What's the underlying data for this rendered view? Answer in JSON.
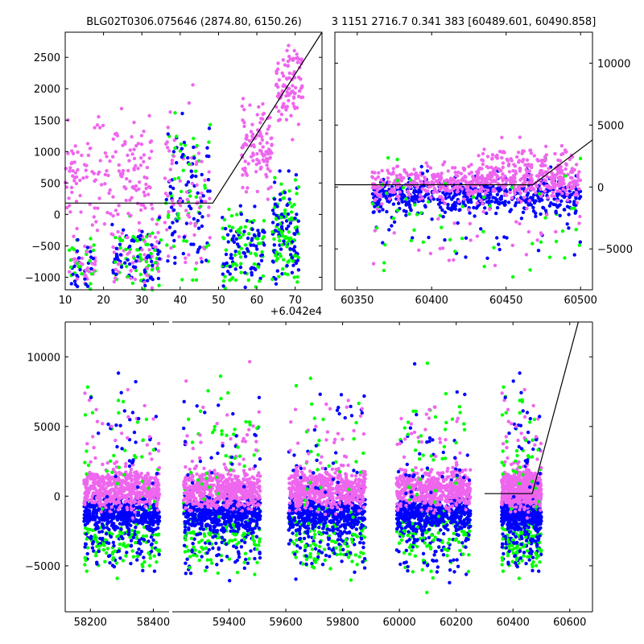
{
  "figure": {
    "title_left": "BLG02T0306.075646 (2874.80, 6150.26)",
    "title_right": "3 1151 2716.7 0.341 383 [60489.601, 60490.858]"
  },
  "colors": {
    "blue": "#0000ff",
    "green": "#00ff00",
    "magenta": "#ee66ee",
    "model_line": "#000000"
  },
  "chart_data": [
    {
      "id": "zoom-left",
      "type": "scatter",
      "xlim": [
        10,
        77
      ],
      "ylim": [
        -1200,
        2900
      ],
      "xticks": [
        10,
        20,
        30,
        40,
        50,
        60,
        70
      ],
      "xticklabels": [
        "10",
        "20",
        "30",
        "40",
        "50",
        "60",
        "70"
      ],
      "yticks": [
        -1000,
        -500,
        0,
        500,
        1000,
        1500,
        2000,
        2500
      ],
      "yticklabels": [
        "−1000",
        "−500",
        "0",
        "500",
        "1000",
        "1500",
        "2000",
        "2500"
      ],
      "y_axis_side": "left",
      "x_offset_label": "+6.042e4",
      "model_line": {
        "x": [
          10,
          48.5,
          77
        ],
        "y": [
          180,
          180,
          2900
        ]
      },
      "point_clusters": [
        {
          "x": [
            11,
            18
          ],
          "center": -850,
          "spread": 500,
          "colors": [
            "blue",
            "magenta",
            "green"
          ],
          "n": 90
        },
        {
          "x": [
            22,
            35
          ],
          "center": -700,
          "spread": 650,
          "colors": [
            "blue",
            "green",
            "magenta"
          ],
          "n": 200
        },
        {
          "x": [
            10,
            33
          ],
          "center": 600,
          "spread": 900,
          "colors": [
            "magenta"
          ],
          "n": 160
        },
        {
          "x": [
            36,
            48
          ],
          "center": 300,
          "spread": 1200,
          "colors": [
            "magenta",
            "green",
            "blue"
          ],
          "n": 200
        },
        {
          "x": [
            51,
            62
          ],
          "center": -550,
          "spread": 600,
          "colors": [
            "blue",
            "green"
          ],
          "n": 150
        },
        {
          "x": [
            56,
            64
          ],
          "center": 1100,
          "spread": 700,
          "colors": [
            "magenta"
          ],
          "n": 110
        },
        {
          "x": [
            64,
            71
          ],
          "center": -300,
          "spread": 900,
          "colors": [
            "blue",
            "green"
          ],
          "n": 180
        },
        {
          "x": [
            65,
            72
          ],
          "center": 2100,
          "spread": 600,
          "colors": [
            "magenta"
          ],
          "n": 100
        }
      ]
    },
    {
      "id": "zoom-right",
      "type": "scatter",
      "xlim": [
        60335,
        60508
      ],
      "ylim": [
        -8300,
        12500
      ],
      "xticks": [
        60350,
        60400,
        60450,
        60500
      ],
      "xticklabels": [
        "60350",
        "60400",
        "60450",
        "60500"
      ],
      "yticks": [
        -5000,
        0,
        5000,
        10000
      ],
      "yticklabels": [
        "−5000",
        "0",
        "5000",
        "10000"
      ],
      "y_axis_side": "right",
      "model_line": {
        "x": [
          60335,
          60468,
          60508
        ],
        "y": [
          180,
          180,
          3800
        ]
      },
      "point_clusters": [
        {
          "x": [
            60360,
            60500
          ],
          "center": -700,
          "spread": 1400,
          "colors": [
            "blue"
          ],
          "n": 500
        },
        {
          "x": [
            60360,
            60500
          ],
          "center": 400,
          "spread": 1300,
          "colors": [
            "magenta"
          ],
          "n": 500
        },
        {
          "x": [
            60360,
            60500
          ],
          "center": -2500,
          "spread": 4500,
          "colors": [
            "green",
            "blue",
            "magenta"
          ],
          "n": 160
        },
        {
          "x": [
            60430,
            60500
          ],
          "center": 2000,
          "spread": 1500,
          "colors": [
            "magenta"
          ],
          "n": 120
        }
      ]
    },
    {
      "id": "full-lightcurve",
      "type": "scatter",
      "ylim": [
        -8300,
        12500
      ],
      "yticks": [
        -5000,
        0,
        5000,
        10000
      ],
      "yticklabels": [
        "−5000",
        "0",
        "5000",
        "10000"
      ],
      "y_axis_side": "left",
      "segments": [
        {
          "xlim": [
            58120,
            58450
          ],
          "xticks": [
            58200,
            58400
          ],
          "xticklabels": [
            "58200",
            "58400"
          ]
        },
        {
          "xlim": [
            59200,
            60680
          ],
          "xticks": [
            59400,
            59600,
            59800,
            60000,
            60200,
            60400,
            60600
          ],
          "xticklabels": [
            "59400",
            "59600",
            "59800",
            "60000",
            "60200",
            "60400",
            "60600"
          ]
        }
      ],
      "model_line": {
        "x": [
          60300,
          60468,
          60630
        ],
        "y": [
          180,
          180,
          12500
        ]
      },
      "seasons": [
        {
          "x": [
            58180,
            58420
          ]
        },
        {
          "x": [
            59240,
            59510
          ]
        },
        {
          "x": [
            59610,
            59880
          ]
        },
        {
          "x": [
            59990,
            60250
          ]
        },
        {
          "x": [
            60360,
            60500
          ]
        }
      ]
    }
  ]
}
